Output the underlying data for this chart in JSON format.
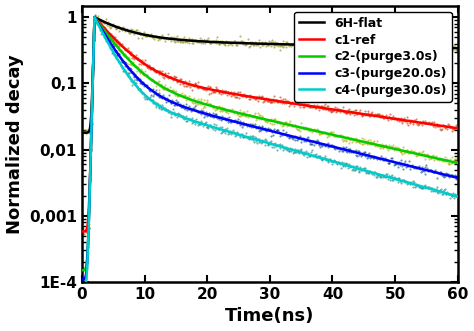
{
  "title": "",
  "xlabel": "Time(ns)",
  "ylabel": "Normalized decay",
  "xlim": [
    0,
    60
  ],
  "ylim": [
    0.0001,
    1.5
  ],
  "series": [
    {
      "label": "6H-flat",
      "line_color": "#000000",
      "dot_color": "#888800",
      "A1": 0.55,
      "tau1": 5.0,
      "A2": 0.43,
      "tau2": 200.0,
      "floor": 0.018
    },
    {
      "label": "c1-ref",
      "line_color": "#ff0000",
      "dot_color": "#cc3300",
      "A1": 0.85,
      "tau1": 3.5,
      "A2": 0.14,
      "tau2": 30.0,
      "floor": 0.00058
    },
    {
      "label": "c2-(purge3.0s)",
      "line_color": "#00cc00",
      "dot_color": "#aaaa00",
      "A1": 0.88,
      "tau1": 3.0,
      "A2": 0.11,
      "tau2": 20.0,
      "floor": 0.00015
    },
    {
      "label": "c3-(purge20.0s)",
      "line_color": "#0000ff",
      "dot_color": "#004488",
      "A1": 0.9,
      "tau1": 2.5,
      "A2": 0.09,
      "tau2": 18.0,
      "floor": 0.00011
    },
    {
      "label": "c4-(purge30.0s)",
      "line_color": "#00cccc",
      "dot_color": "#008888",
      "A1": 0.92,
      "tau1": 2.2,
      "A2": 0.07,
      "tau2": 16.0,
      "floor": 8e-05
    }
  ],
  "ytick_labels": [
    "1E-4",
    "0,001",
    "0,01",
    "0,1",
    "1"
  ],
  "ytick_values": [
    0.0001,
    0.001,
    0.01,
    0.1,
    1
  ],
  "xtick_values": [
    0,
    10,
    20,
    30,
    40,
    50,
    60
  ],
  "legend_fontsize": 9,
  "axis_fontsize": 13,
  "tick_fontsize": 11
}
